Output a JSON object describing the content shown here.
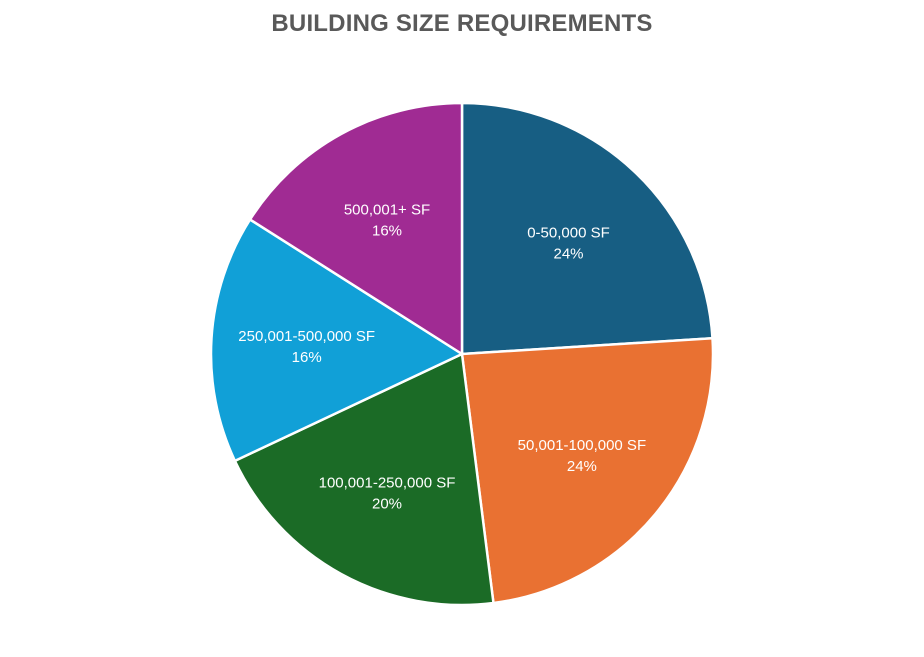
{
  "chart_data": {
    "type": "pie",
    "title": "BUILDING SIZE REQUIREMENTS",
    "categories": [
      "0-50,000 SF",
      "50,001-100,000 SF",
      "100,001-250,000 SF",
      "250,001-500,000 SF",
      "500,001+ SF"
    ],
    "values": [
      24,
      24,
      20,
      16,
      16
    ],
    "value_labels": [
      "24%",
      "24%",
      "20%",
      "16%",
      "16%"
    ],
    "colors": [
      "#175E83",
      "#E97132",
      "#1B6B26",
      "#11A0D7",
      "#A02B93"
    ],
    "legend": "none",
    "data_labels": "inside"
  }
}
